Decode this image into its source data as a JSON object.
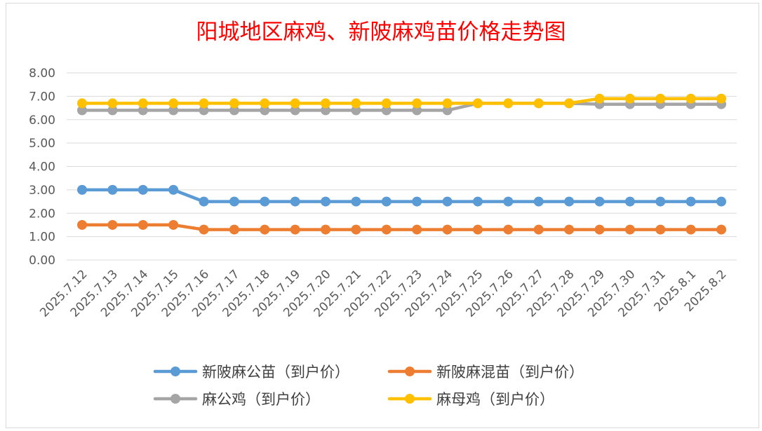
{
  "chart_data": {
    "type": "line",
    "title": "阳城地区麻鸡、新陂麻鸡苗价格走势图",
    "title_color": "#ff0000",
    "x": [
      "2025.7.12",
      "2025.7.13",
      "2025.7.14",
      "2025.7.15",
      "2025.7.16",
      "2025.7.17",
      "2025.7.18",
      "2025.7.19",
      "2025.7.20",
      "2025.7.21",
      "2025.7.22",
      "2025.7.23",
      "2025.7.24",
      "2025.7.25",
      "2025.7.26",
      "2025.7.27",
      "2025.7.28",
      "2025.7.29",
      "2025.7.30",
      "2025.7.31",
      "2025.8.1",
      "2025.8.2"
    ],
    "yticks": [
      "0.00",
      "1.00",
      "2.00",
      "3.00",
      "4.00",
      "5.00",
      "6.00",
      "7.00",
      "8.00"
    ],
    "ylim": [
      0,
      8
    ],
    "grid": true,
    "legend_position": "bottom",
    "series": [
      {
        "name": "新陂麻公苗（到户价）",
        "color": "#5b9bd5",
        "values": [
          3.0,
          3.0,
          3.0,
          3.0,
          2.5,
          2.5,
          2.5,
          2.5,
          2.5,
          2.5,
          2.5,
          2.5,
          2.5,
          2.5,
          2.5,
          2.5,
          2.5,
          2.5,
          2.5,
          2.5,
          2.5,
          2.5
        ]
      },
      {
        "name": "新陂麻混苗（到户价）",
        "color": "#ed7d31",
        "values": [
          1.5,
          1.5,
          1.5,
          1.5,
          1.3,
          1.3,
          1.3,
          1.3,
          1.3,
          1.3,
          1.3,
          1.3,
          1.3,
          1.3,
          1.3,
          1.3,
          1.3,
          1.3,
          1.3,
          1.3,
          1.3,
          1.3
        ]
      },
      {
        "name": "麻公鸡（到户价）",
        "color": "#a5a5a5",
        "values": [
          6.4,
          6.4,
          6.4,
          6.4,
          6.4,
          6.4,
          6.4,
          6.4,
          6.4,
          6.4,
          6.4,
          6.4,
          6.4,
          6.7,
          6.7,
          6.7,
          6.7,
          6.66,
          6.66,
          6.66,
          6.66,
          6.66
        ]
      },
      {
        "name": "麻母鸡（到户价）",
        "color": "#ffc000",
        "values": [
          6.7,
          6.7,
          6.7,
          6.7,
          6.7,
          6.7,
          6.7,
          6.7,
          6.7,
          6.7,
          6.7,
          6.7,
          6.7,
          6.7,
          6.7,
          6.7,
          6.7,
          6.9,
          6.9,
          6.9,
          6.9,
          6.9
        ]
      }
    ]
  }
}
